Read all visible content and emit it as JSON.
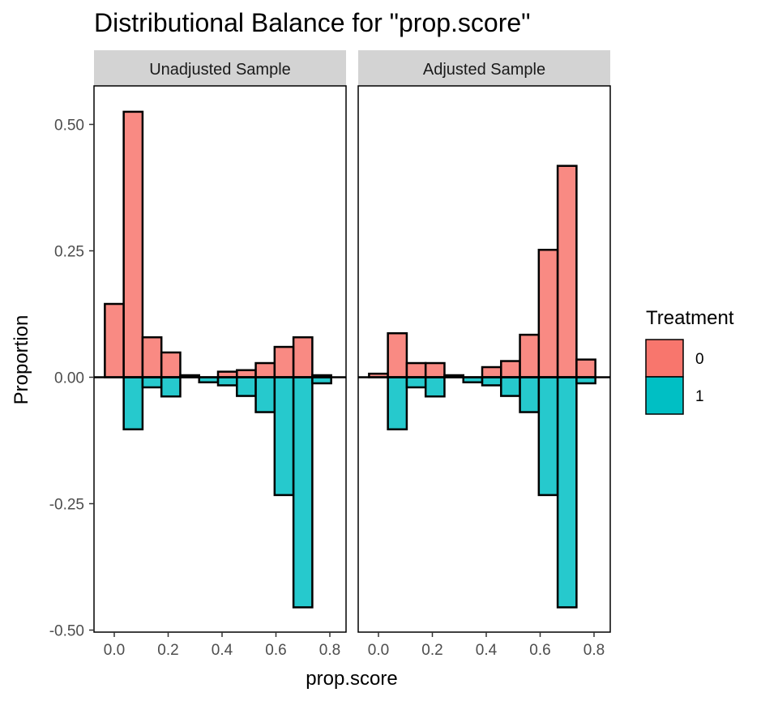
{
  "chart_data": {
    "type": "bar",
    "title": "Distributional Balance for \"prop.score\"",
    "xlabel": "prop.score",
    "ylabel": "Proportion",
    "xlim": [
      -0.05,
      0.82
    ],
    "ylim": [
      -0.5,
      0.6
    ],
    "x_ticks": [
      "0.0",
      "0.2",
      "0.4",
      "0.6",
      "0.8"
    ],
    "x_tick_values": [
      0.0,
      0.2,
      0.4,
      0.6,
      0.8
    ],
    "y_ticks": [
      "0.50",
      "0.25",
      "0.00",
      "-0.25",
      "-0.50"
    ],
    "y_tick_values": [
      0.5,
      0.25,
      0.0,
      -0.25,
      -0.5
    ],
    "grid": false,
    "bin_width": 0.07,
    "bin_centers": [
      0.0,
      0.07,
      0.14,
      0.21,
      0.28,
      0.35,
      0.42,
      0.49,
      0.56,
      0.63,
      0.7,
      0.77
    ],
    "legend": {
      "title": "Treatment",
      "position": "right",
      "entries": [
        {
          "label": "0",
          "color": "#F8766D"
        },
        {
          "label": "1",
          "color": "#00BFC4"
        }
      ]
    },
    "panels": [
      {
        "strip": "Unadjusted Sample",
        "series": [
          {
            "name": "0",
            "values": [
              0.145,
              0.525,
              0.079,
              0.049,
              0.004,
              0.0,
              0.011,
              0.014,
              0.028,
              0.06,
              0.079,
              0.004
            ]
          },
          {
            "name": "1",
            "values": [
              0.0,
              -0.103,
              -0.02,
              -0.038,
              0.0,
              -0.01,
              -0.016,
              -0.037,
              -0.069,
              -0.233,
              -0.455,
              -0.012
            ]
          }
        ]
      },
      {
        "strip": "Adjusted Sample",
        "series": [
          {
            "name": "0",
            "values": [
              0.007,
              0.087,
              0.028,
              0.028,
              0.004,
              0.0,
              0.02,
              0.032,
              0.084,
              0.252,
              0.418,
              0.035
            ]
          },
          {
            "name": "1",
            "values": [
              0.0,
              -0.103,
              -0.02,
              -0.038,
              0.0,
              -0.01,
              -0.016,
              -0.037,
              -0.069,
              -0.233,
              -0.455,
              -0.012
            ]
          }
        ]
      }
    ],
    "colors": {
      "fill_0": "#F8766D",
      "fill_1": "#00BFC4",
      "strip_bg": "#D3D3D3",
      "outline": "#000000"
    }
  }
}
